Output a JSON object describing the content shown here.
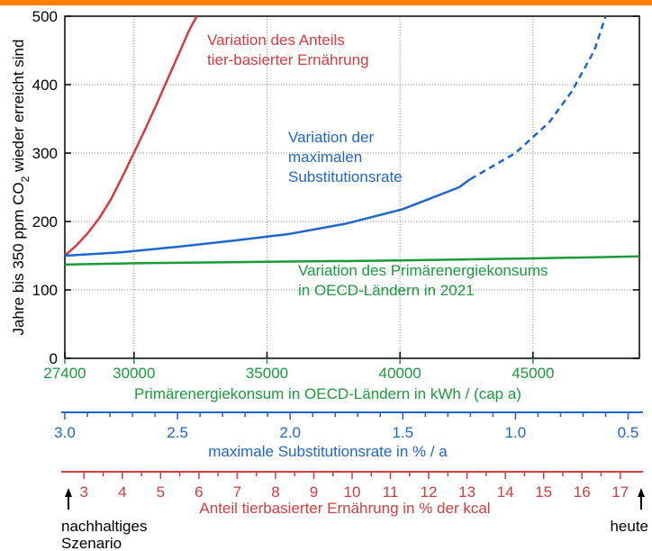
{
  "colors": {
    "accent_bar": "#ff7f00",
    "red": "#d63c3c",
    "blue": "#1f66cc",
    "green": "#1a9a3a",
    "axis": "#000000",
    "grid": "#888888"
  },
  "chart_data": {
    "type": "line",
    "ylabel_prefix": "Jahre bis 350 ppm CO",
    "ylabel_sub": "2",
    "ylabel_suffix": " wieder erreicht sind",
    "ylim": [
      0,
      500
    ],
    "y_ticks": [
      0,
      100,
      200,
      300,
      400,
      500
    ],
    "grid": true,
    "axes": {
      "energy": {
        "label": "Primärenergiekonsum in OECD-Ländern in kWh / (cap a)",
        "range": [
          27400,
          49000
        ],
        "ticks": [
          27400,
          30000,
          35000,
          40000,
          45000
        ],
        "color": "#1a9a3a"
      },
      "substitution": {
        "label": "maximale Substitutionsrate in % / a",
        "range": [
          3.0,
          0.45
        ],
        "ticks": [
          "3.0",
          "2.5",
          "2.0",
          "1.5",
          "1.0",
          "0.5"
        ],
        "color": "#1f66cc"
      },
      "diet": {
        "label": "Anteil tierbasierter Ernährung in % der kcal",
        "range": [
          2.5,
          17.5
        ],
        "ticks": [
          "3",
          "4",
          "5",
          "6",
          "7",
          "8",
          "9",
          "10",
          "11",
          "12",
          "13",
          "14",
          "15",
          "16",
          "17"
        ],
        "color": "#d63c3c"
      }
    },
    "markers": {
      "left": [
        "nachhaltiges",
        "Szenario"
      ],
      "right": "heute"
    },
    "series": [
      {
        "name": "Variation des Anteils tier-basierter Ernährung",
        "label_lines": [
          "Variation des Anteils",
          "tier-basierter Ernährung"
        ],
        "axis": "diet",
        "color": "#d63c3c",
        "x": [
          2.5,
          2.8,
          3.1,
          3.4,
          3.7,
          4.0,
          4.3,
          4.6,
          4.9,
          5.2,
          5.5,
          5.75,
          5.95
        ],
        "y": [
          150,
          165,
          183,
          205,
          232,
          265,
          300,
          335,
          372,
          410,
          448,
          480,
          500
        ]
      },
      {
        "name": "Variation der maximalen Substitutionsrate",
        "label_lines": [
          "Variation der",
          "maximalen",
          "Substitutionsrate"
        ],
        "axis": "substitution",
        "color": "#1f66cc",
        "x": [
          3.0,
          2.75,
          2.5,
          2.25,
          2.0,
          1.75,
          1.5,
          1.25,
          1.2
        ],
        "y": [
          150,
          155,
          163,
          172,
          182,
          197,
          218,
          250,
          262
        ],
        "dashed_x": [
          1.2,
          1.0,
          0.85,
          0.75,
          0.65,
          0.6
        ],
        "dashed_y": [
          262,
          300,
          345,
          390,
          450,
          500
        ]
      },
      {
        "name": "Variation des Primärenergiekonsums in OECD-Ländern in 2021",
        "label_lines": [
          "Variation des Primärenergiekonsums",
          "in OECD-Ländern in 2021"
        ],
        "axis": "energy",
        "color": "#1a9a3a",
        "x": [
          27400,
          30000,
          35000,
          40000,
          45000,
          49000
        ],
        "y": [
          137,
          139,
          141,
          143,
          146,
          149
        ]
      }
    ]
  }
}
